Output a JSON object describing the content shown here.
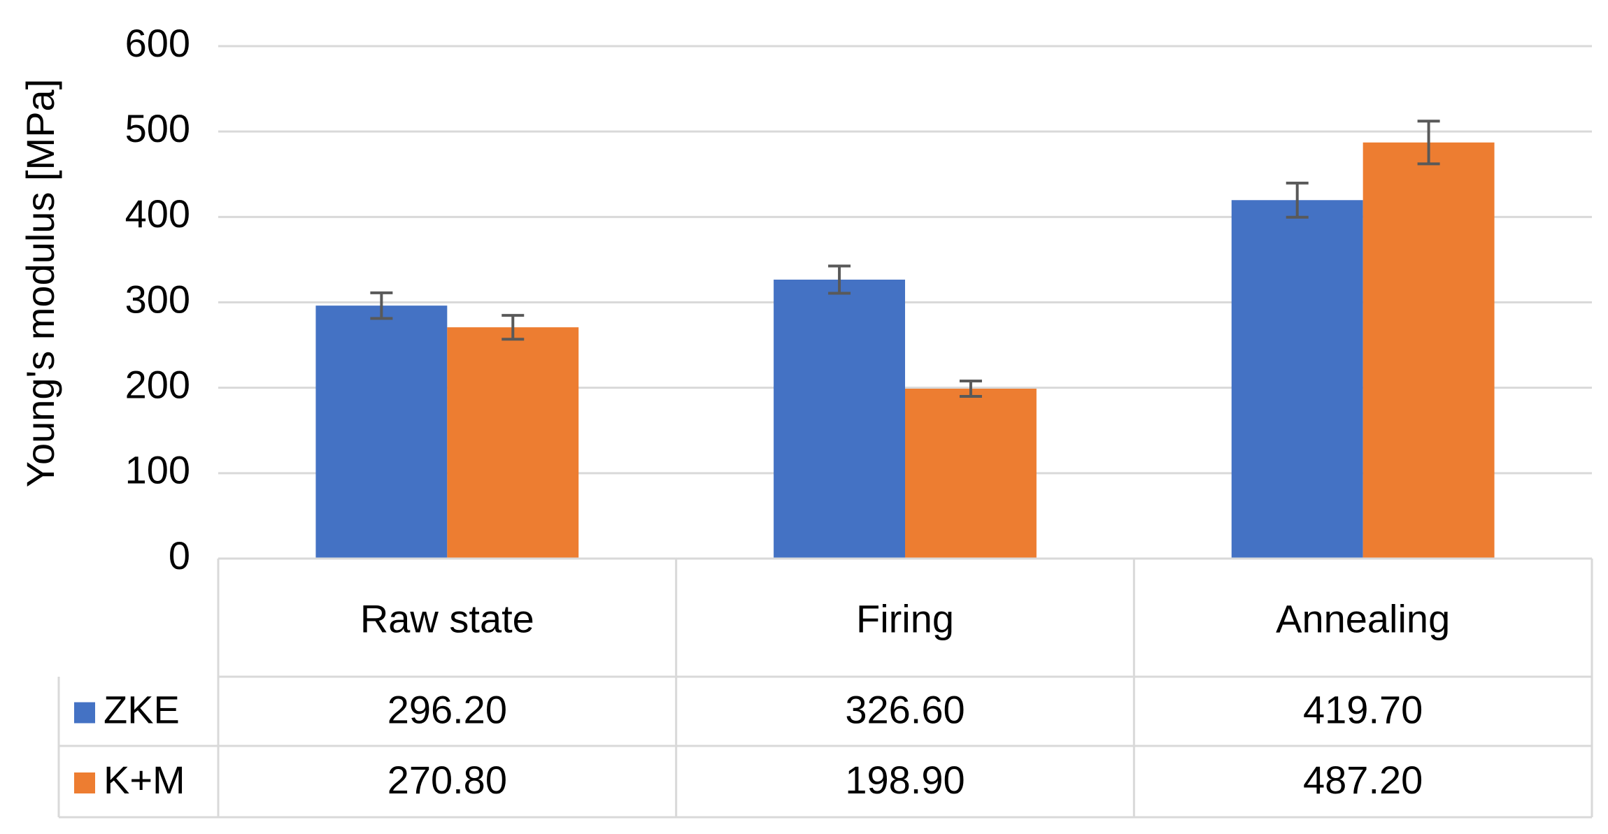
{
  "chart_data": {
    "type": "bar",
    "y_label": "Young's modulus [MPa]",
    "categories": [
      "Raw state",
      "Firing",
      "Annealing"
    ],
    "series": [
      {
        "name": "ZKE",
        "color": "#4472c4",
        "values": [
          296.2,
          326.6,
          419.7
        ],
        "value_labels": [
          "296.20",
          "326.60",
          "419.70"
        ],
        "errors": [
          15,
          16,
          20
        ]
      },
      {
        "name": "K+M",
        "color": "#ed7d31",
        "values": [
          270.8,
          198.9,
          487.2
        ],
        "value_labels": [
          "270.80",
          "198.90",
          "487.20"
        ],
        "errors": [
          14,
          9,
          25
        ]
      }
    ],
    "ylim": [
      0,
      600
    ],
    "yticks": [
      0,
      100,
      200,
      300,
      400,
      500,
      600
    ],
    "grid": true,
    "data_table": true
  }
}
